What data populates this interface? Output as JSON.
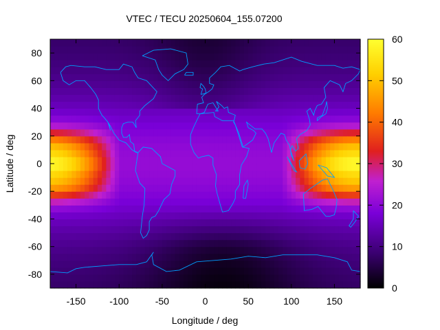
{
  "chart_data": {
    "type": "heatmap",
    "title": "VTEC / TECU 20250604_155.07200",
    "xlabel": "Longitude / deg",
    "ylabel": "Latitude / deg",
    "xlim": [
      -180,
      180
    ],
    "ylim": [
      -90,
      90
    ],
    "x_ticks": [
      -150,
      -100,
      -50,
      0,
      50,
      100,
      150
    ],
    "y_ticks": [
      -80,
      -60,
      -40,
      -20,
      0,
      20,
      40,
      60,
      80
    ],
    "colorbar": {
      "range": [
        0,
        60
      ],
      "ticks": [
        0,
        10,
        20,
        30,
        40,
        50,
        60
      ],
      "palette": [
        "#000000",
        "#3a0070",
        "#7a00d8",
        "#c020d0",
        "#e0201e",
        "#ff7a00",
        "#ffd000",
        "#ffff30"
      ]
    },
    "grid_resolution_deg": 5,
    "features": [
      {
        "description": "VTEC maximum",
        "lon": -170,
        "lat": 0,
        "value": 55
      },
      {
        "description": "VTEC maximum (wraps date line)",
        "lon": 175,
        "lat": 0,
        "value": 55
      }
    ],
    "coastline_color": "#00a0ff"
  }
}
